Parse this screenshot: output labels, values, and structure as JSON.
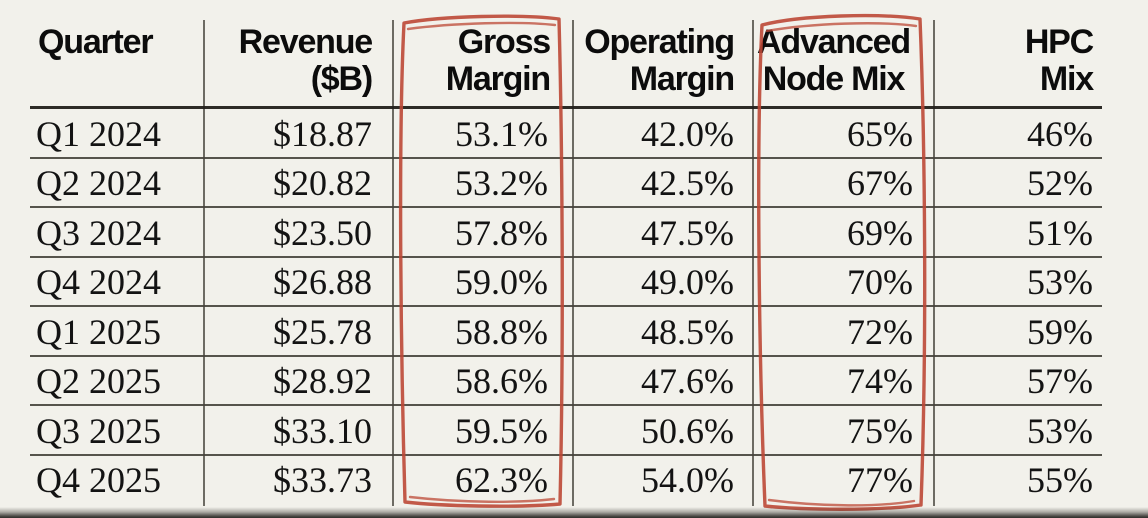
{
  "colors": {
    "background": "#f2f1eb",
    "text": "#131313",
    "header_text": "#0c0c0c",
    "grid_line": "#56534b",
    "header_separator": "#22201b",
    "annotation_red": "#bc4836"
  },
  "table": {
    "header": [
      {
        "lines": [
          "Quarter"
        ]
      },
      {
        "lines": [
          "Revenue",
          "($B)"
        ]
      },
      {
        "lines": [
          "Gross",
          "Margin"
        ]
      },
      {
        "lines": [
          "Operating",
          "Margin"
        ]
      },
      {
        "lines": [
          "Advanced",
          "Node Mix"
        ]
      },
      {
        "lines": [
          "HPC",
          "Mix"
        ]
      }
    ]
  },
  "chart_data": {
    "type": "table",
    "columns": [
      "Quarter",
      "Revenue ($B)",
      "Gross Margin",
      "Operating Margin",
      "Advanced Node Mix",
      "HPC Mix"
    ],
    "rows": [
      [
        "Q1 2024",
        "$18.87",
        "53.1%",
        "42.0%",
        "65%",
        "46%"
      ],
      [
        "Q2 2024",
        "$20.82",
        "53.2%",
        "42.5%",
        "67%",
        "52%"
      ],
      [
        "Q3 2024",
        "$23.50",
        "57.8%",
        "47.5%",
        "69%",
        "51%"
      ],
      [
        "Q4 2024",
        "$26.88",
        "59.0%",
        "49.0%",
        "70%",
        "53%"
      ],
      [
        "Q1 2025",
        "$25.78",
        "58.8%",
        "48.5%",
        "72%",
        "59%"
      ],
      [
        "Q2 2025",
        "$28.92",
        "58.6%",
        "47.6%",
        "74%",
        "57%"
      ],
      [
        "Q3 2025",
        "$33.10",
        "59.5%",
        "50.6%",
        "75%",
        "53%"
      ],
      [
        "Q4 2025",
        "$33.73",
        "62.3%",
        "54.0%",
        "77%",
        "55%"
      ]
    ],
    "annotations": [
      "Hand-drawn red box around Gross Margin column",
      "Hand-drawn red box around Advanced Node Mix column"
    ]
  }
}
